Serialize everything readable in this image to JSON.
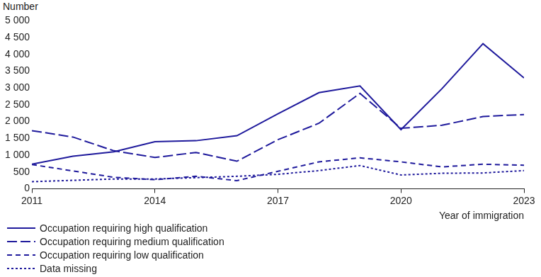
{
  "chart_data": {
    "type": "line",
    "y_label": "Number",
    "x_label": "Year of immigration",
    "x": [
      2011,
      2012,
      2013,
      2014,
      2015,
      2016,
      2017,
      2018,
      2019,
      2020,
      2021,
      2022,
      2023
    ],
    "xlim": [
      2011,
      2023
    ],
    "xticks": [
      2011,
      2014,
      2017,
      2020,
      2023
    ],
    "ylim": [
      0,
      5000
    ],
    "yticks": [
      0,
      500,
      {
        "value": 1000,
        "label": "1 000"
      },
      {
        "value": 1500,
        "label": "1 500"
      },
      {
        "value": 2000,
        "label": "2 000"
      },
      {
        "value": 2500,
        "label": "2 500"
      },
      {
        "value": 3000,
        "label": "3 000"
      },
      {
        "value": 3500,
        "label": "3 500"
      },
      {
        "value": 4000,
        "label": "4 000"
      },
      {
        "value": 4500,
        "label": "4 500"
      },
      {
        "value": 5000,
        "label": "5 000"
      }
    ],
    "grid": false,
    "legend": "bottom",
    "series": [
      {
        "name": "Occupation requiring high qualification",
        "color": "#1f1a9c",
        "line_style": "solid",
        "values": [
          730,
          970,
          1100,
          1400,
          1430,
          1580,
          2230,
          2860,
          3060,
          1760,
          2980,
          4320,
          3300
        ]
      },
      {
        "name": "Occupation requiring medium qualification",
        "color": "#1f1a9c",
        "line_style": "long_dash",
        "values": [
          1730,
          1540,
          1130,
          930,
          1080,
          820,
          1460,
          1950,
          2840,
          1800,
          1890,
          2150,
          2210
        ]
      },
      {
        "name": "Occupation requiring low qualification",
        "color": "#1f1a9c",
        "line_style": "dashed",
        "values": [
          720,
          530,
          340,
          270,
          370,
          240,
          520,
          800,
          920,
          800,
          650,
          730,
          700
        ]
      },
      {
        "name": "Data missing",
        "color": "#1f1a9c",
        "line_style": "dotted",
        "values": [
          210,
          250,
          290,
          290,
          330,
          370,
          430,
          540,
          690,
          410,
          460,
          470,
          540
        ]
      }
    ]
  }
}
